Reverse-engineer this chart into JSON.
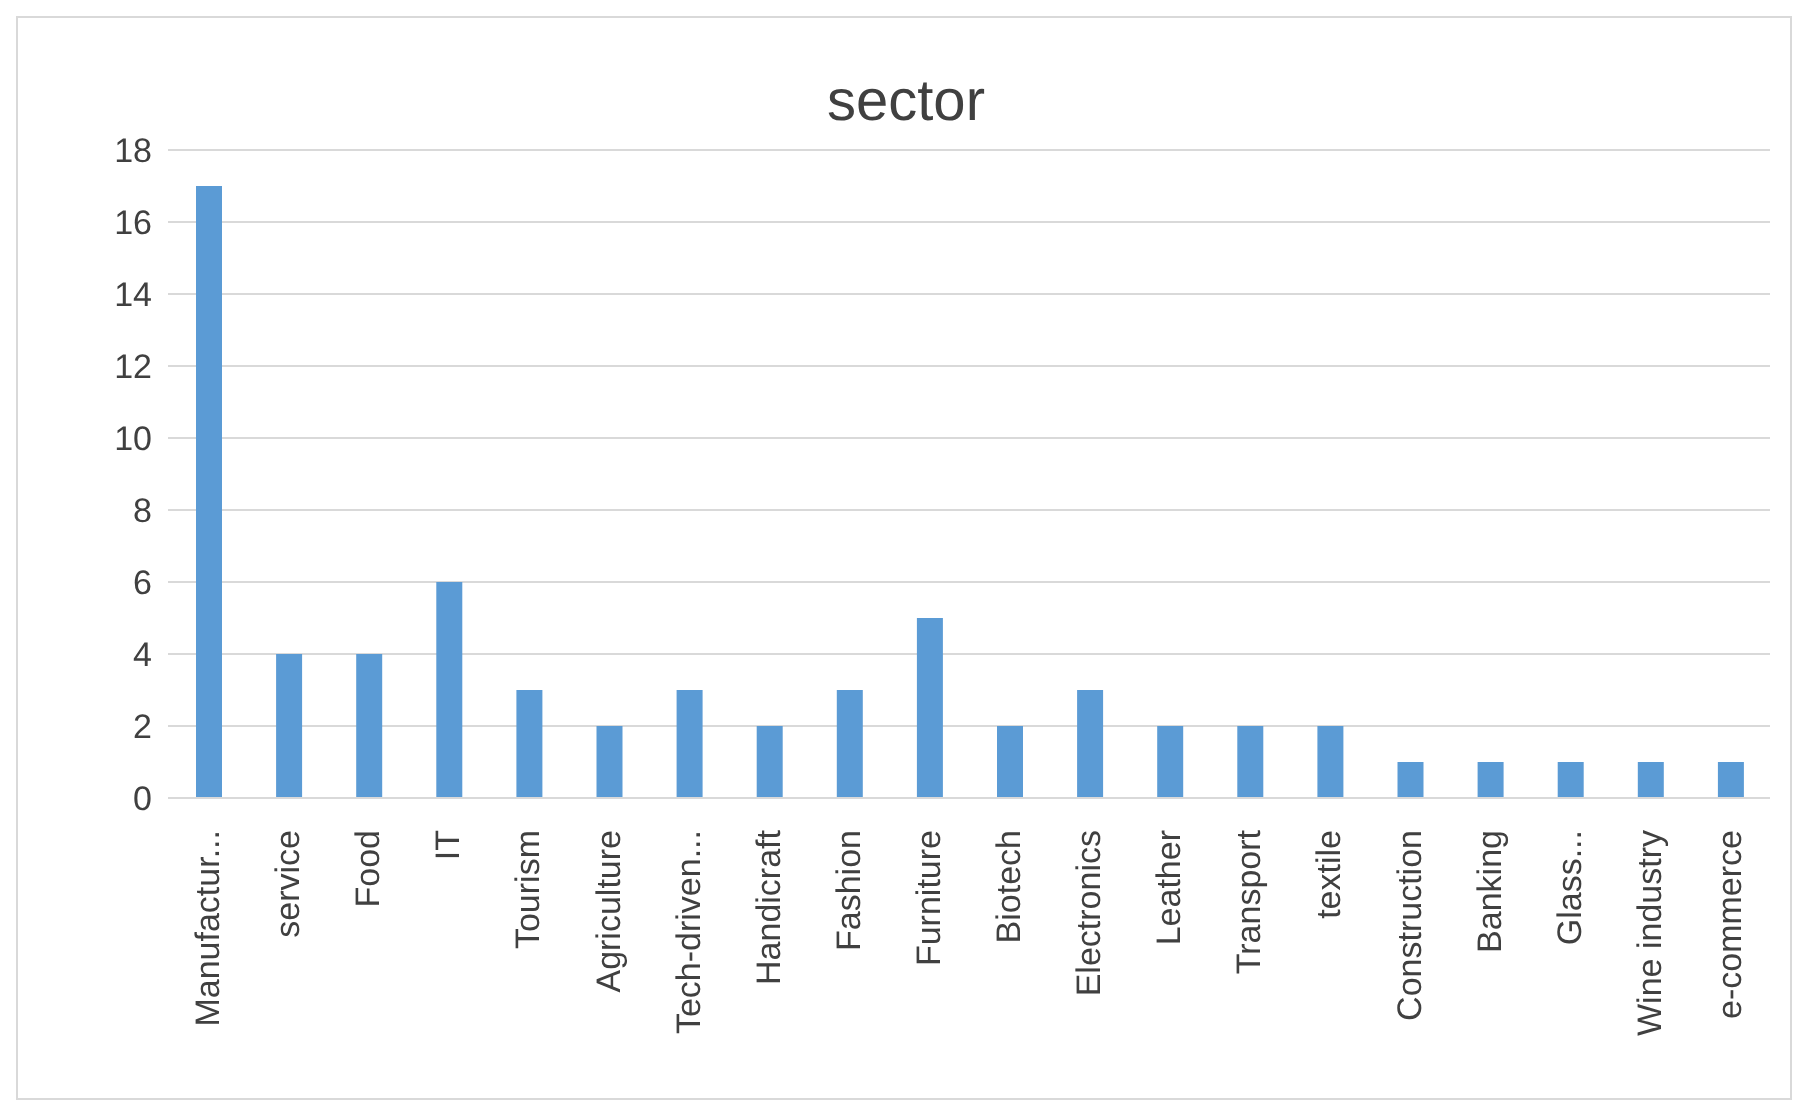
{
  "chart_data": {
    "type": "bar",
    "title": "sector",
    "categories": [
      "Manufactur...",
      "service",
      "Food",
      "IT",
      "Tourism",
      "Agriculture",
      "Tech-driven...",
      "Handicraft",
      "Fashion",
      "Furniture",
      "Biotech",
      "Electronics",
      "Leather",
      "Transport",
      "textile",
      "Construction",
      "Banking",
      "Glass...",
      "Wine industry",
      "e-commerce"
    ],
    "values": [
      17,
      4,
      4,
      6,
      3,
      2,
      3,
      2,
      3,
      5,
      2,
      3,
      2,
      2,
      2,
      1,
      1,
      1,
      1,
      1
    ],
    "color": "#5b9bd5",
    "ylim": [
      0,
      18
    ],
    "yticks": [
      0,
      2,
      4,
      6,
      8,
      10,
      12,
      14,
      16,
      18
    ],
    "grid": "y"
  }
}
